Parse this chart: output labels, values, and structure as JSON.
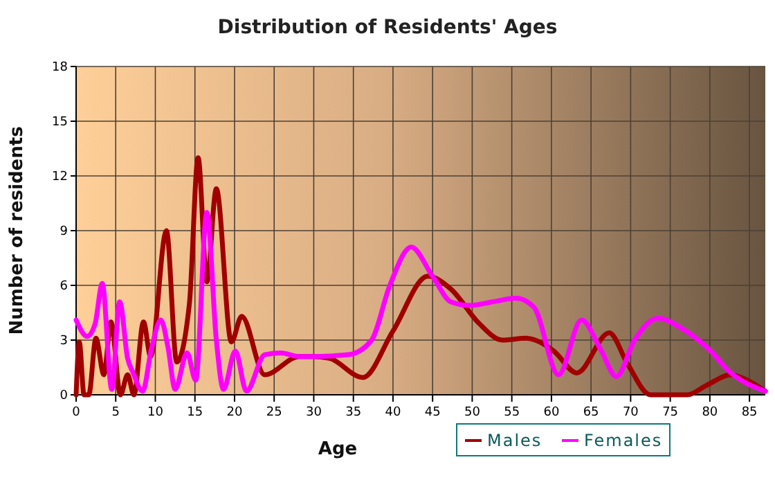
{
  "chart_data": {
    "type": "line",
    "title": "Distribution of Residents' Ages",
    "xlabel": "Age",
    "ylabel": "Number of residents",
    "xlim": [
      0,
      87
    ],
    "xticks": [
      0,
      5,
      10,
      15,
      20,
      25,
      30,
      35,
      40,
      45,
      50,
      55,
      60,
      65,
      70,
      75,
      80,
      85
    ],
    "ylim": [
      0,
      18
    ],
    "yticks": [
      0,
      3,
      6,
      9,
      12,
      15,
      18
    ],
    "grid": true,
    "legend": "bottom right",
    "line_style": "solid",
    "marker": "none",
    "series": [
      {
        "name": "Males",
        "color": "#a00000",
        "x": [
          0,
          0.4,
          1,
          1.6,
          2.5,
          3.5,
          4.4,
          5.6,
          6.5,
          7.3,
          8.5,
          9.4,
          11.4,
          12.7,
          14.3,
          15.4,
          16.5,
          17.7,
          19.6,
          20.9,
          23.8,
          28.2,
          30,
          32,
          36.2,
          40,
          44.4,
          47.3,
          50.9,
          53.8,
          56.8,
          60.3,
          63.2,
          67.3,
          69.6,
          72.5,
          77.2,
          79.5,
          82.7,
          84.7,
          87
        ],
        "values": [
          0,
          2.9,
          0,
          0,
          3.1,
          1.1,
          4,
          0,
          1.1,
          0,
          4,
          2.1,
          9,
          1.8,
          5,
          13,
          6.2,
          11.3,
          2.9,
          4.3,
          1.1,
          2.1,
          2.1,
          2,
          0.95,
          3.5,
          6.5,
          5.8,
          3.9,
          3,
          3.1,
          2.4,
          1.2,
          3.4,
          1.7,
          0,
          0,
          0.5,
          1.1,
          0.8,
          0.2
        ]
      },
      {
        "name": "Females",
        "color": "#ff00ff",
        "x": [
          0,
          1.4,
          2.4,
          3.3,
          4.5,
          5.5,
          6.5,
          7.2,
          8.4,
          9.5,
          10.7,
          11.6,
          12.5,
          14,
          15.1,
          16.5,
          17.7,
          18.6,
          20.1,
          21.5,
          23.8,
          25.8,
          28.2,
          30,
          34.4,
          37.3,
          39.6,
          42.3,
          45,
          47.3,
          49.7,
          52.6,
          55.5,
          57.8,
          60.9,
          63.8,
          66.2,
          68.2,
          70.5,
          73.4,
          76.6,
          80.1,
          82.4,
          87
        ],
        "values": [
          4.1,
          3.2,
          3.9,
          6.1,
          0.3,
          5.1,
          2,
          1.2,
          0.2,
          2.5,
          4.1,
          2.6,
          0.3,
          2.3,
          0.8,
          10,
          3,
          0.3,
          2.4,
          0.2,
          2.2,
          2.3,
          2.1,
          2.1,
          2.2,
          3,
          6,
          8.1,
          6.5,
          5.1,
          4.9,
          5.1,
          5.3,
          4.8,
          1.1,
          4.1,
          2.5,
          1,
          3,
          4.2,
          3.6,
          2.4,
          1.3,
          0.2
        ]
      }
    ]
  }
}
